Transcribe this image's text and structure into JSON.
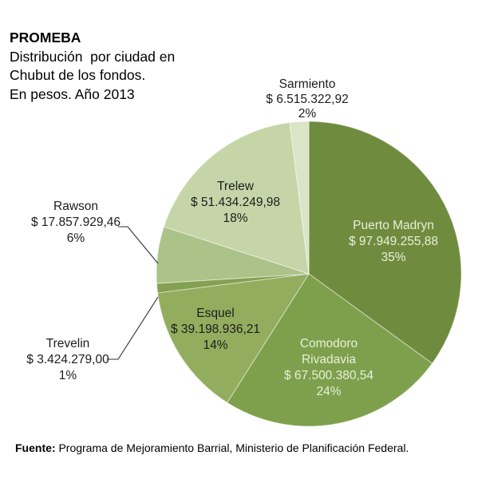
{
  "header": {
    "title": "PROMEBA",
    "subtitle_lines": [
      "Distribución  por ciudad en",
      "Chubut de los fondos.",
      "En pesos. Año 2013"
    ]
  },
  "chart_data": {
    "type": "pie",
    "title": "PROMEBA - Distribución por ciudad en Chubut de los fondos. En pesos. Año 2013",
    "unit": "pesos (ARS)",
    "legend": "none",
    "slices": [
      {
        "id": "puerto-madryn",
        "name": "Puerto Madryn",
        "amount": "$ 97.949.255,88",
        "value": 97949255.88,
        "percent": 35,
        "percent_label": "35%",
        "color": "#6f8c3e",
        "label_placement": "inside"
      },
      {
        "id": "comodoro-rivadavia",
        "name": "Comodoro Rivadavia",
        "amount": "$ 67.500.380,54",
        "value": 67500380.54,
        "percent": 24,
        "percent_label": "24%",
        "color": "#7ea04c",
        "label_placement": "inside"
      },
      {
        "id": "esquel",
        "name": "Esquel",
        "amount": "$ 39.198.936,21",
        "value": 39198936.21,
        "percent": 14,
        "percent_label": "14%",
        "color": "#93ad5f",
        "label_placement": "inside"
      },
      {
        "id": "trevelin",
        "name": "Trevelin",
        "amount": "$ 3.424.279,00",
        "value": 3424279.0,
        "percent": 1,
        "percent_label": "1%",
        "color": "#84a152",
        "label_placement": "outside-left"
      },
      {
        "id": "rawson",
        "name": "Rawson",
        "amount": "$ 17.857.929,46",
        "value": 17857929.46,
        "percent": 6,
        "percent_label": "6%",
        "color": "#abc289",
        "label_placement": "outside-left"
      },
      {
        "id": "trelew",
        "name": "Trelew",
        "amount": "$ 51.434.249,98",
        "value": 51434249.98,
        "percent": 18,
        "percent_label": "18%",
        "color": "#c6d5a8",
        "label_placement": "inside"
      },
      {
        "id": "sarmiento",
        "name": "Sarmiento",
        "amount": "$ 6.515.322,92",
        "value": 6515322.92,
        "percent": 2,
        "percent_label": "2%",
        "color": "#dbe4c6",
        "label_placement": "outside-top"
      }
    ]
  },
  "footer": {
    "source_label": "Fuente:",
    "source_text": " Programa de Mejoramiento Barrial, Ministerio de Planificación Federal."
  }
}
